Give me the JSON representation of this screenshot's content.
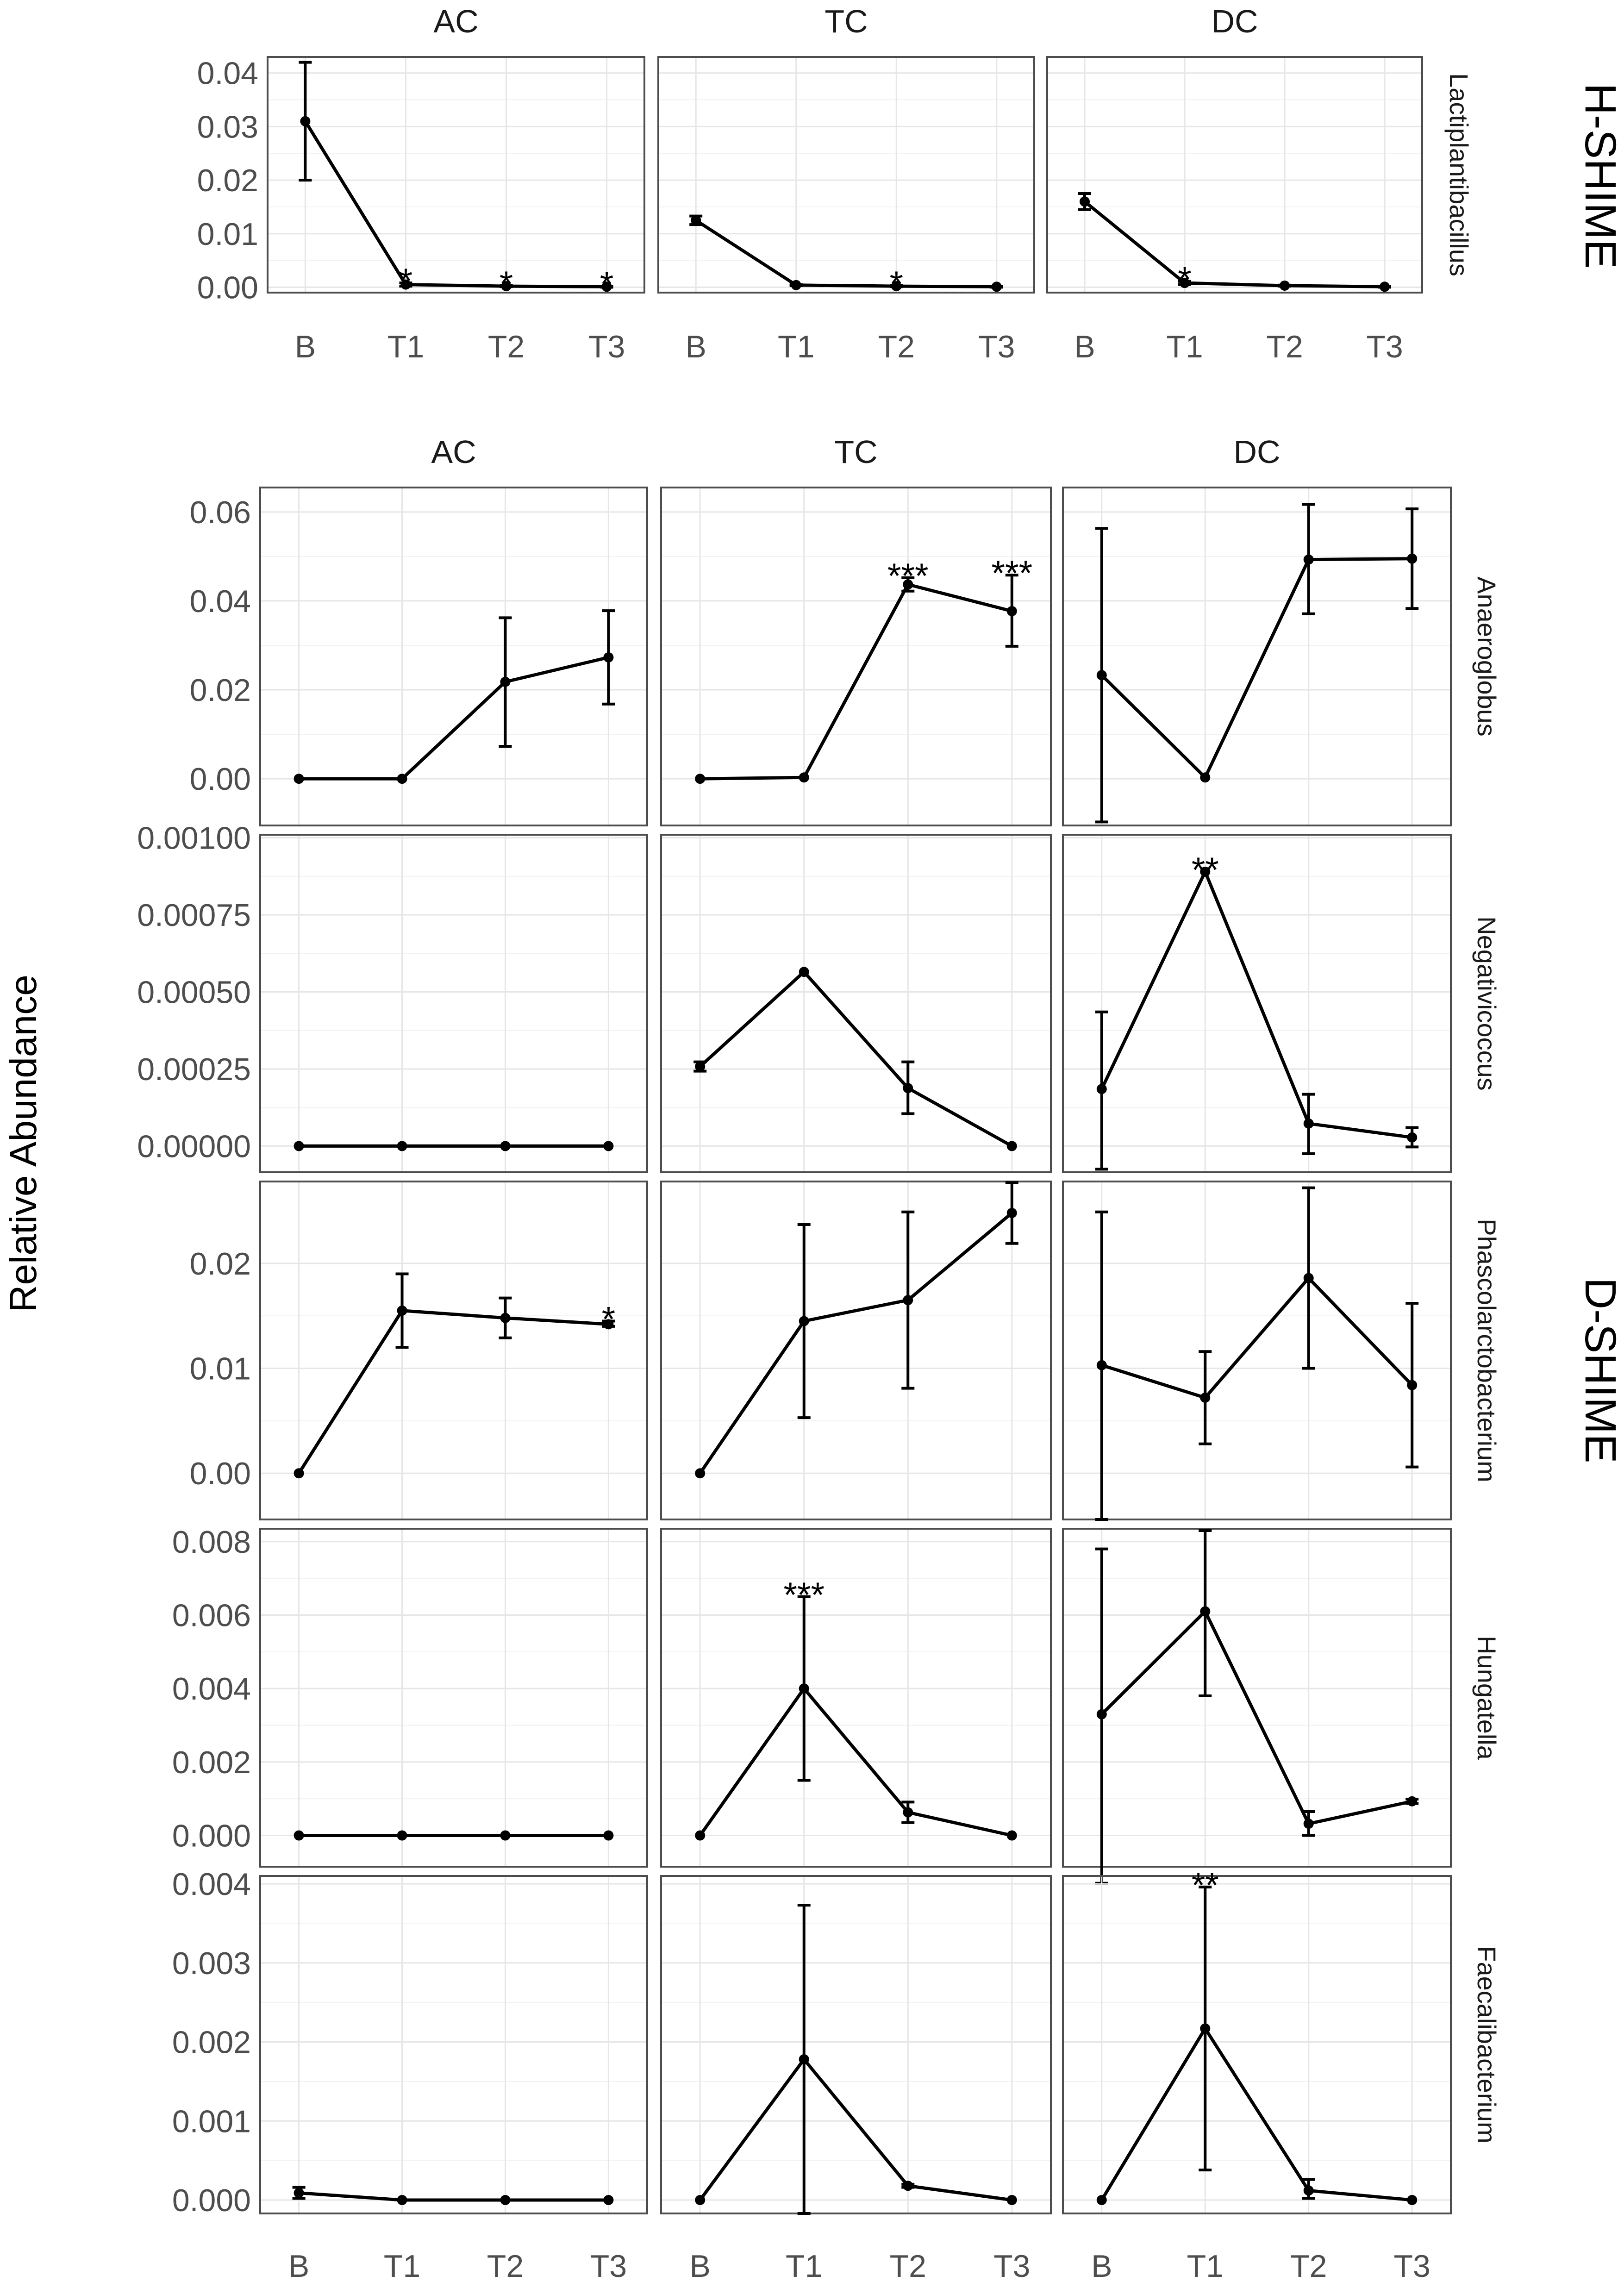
{
  "axis_title": "Relative Abundance",
  "chart_data": {
    "type": "line",
    "x_categories": [
      "B",
      "T1",
      "T2",
      "T3"
    ],
    "ylabel": "Relative Abundance",
    "groups": [
      {
        "name": "H-SHIME",
        "columns": [
          "AC",
          "TC",
          "DC"
        ],
        "rows": [
          {
            "genus": "Lactiplantibacillus",
            "ylim": [
              -0.001,
              0.043
            ],
            "yticks": [
              0,
              0.01,
              0.02,
              0.03,
              0.04
            ],
            "ytick_labels": [
              "0.00",
              "0.01",
              "0.02",
              "0.03",
              "0.04"
            ],
            "panels": [
              {
                "column": "AC",
                "values": [
                  0.031,
                  0.0005,
                  0.0002,
                  0.0001
                ],
                "err_low": [
                  0.02,
                  0.0002,
                  0.0001,
                  0.0
                ],
                "err_high": [
                  0.042,
                  0.0008,
                  0.0003,
                  0.0002
                ],
                "sig": [
                  "",
                  "*",
                  "*",
                  "*"
                ]
              },
              {
                "column": "TC",
                "values": [
                  0.0125,
                  0.0004,
                  0.0002,
                  0.0001
                ],
                "err_low": [
                  0.0117,
                  0.0003,
                  0.0001,
                  0.0
                ],
                "err_high": [
                  0.0133,
                  0.0005,
                  0.0003,
                  0.0002
                ],
                "sig": [
                  "",
                  "",
                  "*",
                  ""
                ]
              },
              {
                "column": "DC",
                "values": [
                  0.016,
                  0.0008,
                  0.0003,
                  0.0001
                ],
                "err_low": [
                  0.0145,
                  0.0005,
                  0.0002,
                  0.0
                ],
                "err_high": [
                  0.0175,
                  0.0011,
                  0.0004,
                  0.0002
                ],
                "sig": [
                  "",
                  "*",
                  "",
                  ""
                ]
              }
            ]
          }
        ]
      },
      {
        "name": "D-SHIME",
        "columns": [
          "AC",
          "TC",
          "DC"
        ],
        "rows": [
          {
            "genus": "Anaeroglobus",
            "ylim": [
              -0.0105,
              0.0655
            ],
            "yticks": [
              0,
              0.02,
              0.04,
              0.06
            ],
            "ytick_labels": [
              "0.00",
              "0.02",
              "0.04",
              "0.06"
            ],
            "panels": [
              {
                "column": "AC",
                "values": [
                  0.0,
                  0.0,
                  0.0218,
                  0.0273
                ],
                "err_low": [
                  0.0,
                  0.0,
                  0.0073,
                  0.0168
                ],
                "err_high": [
                  0.0,
                  0.0,
                  0.0362,
                  0.0378
                ],
                "sig": [
                  "",
                  "",
                  "",
                  ""
                ]
              },
              {
                "column": "TC",
                "values": [
                  0.0,
                  0.0003,
                  0.0437,
                  0.0377
                ],
                "err_low": [
                  0.0,
                  0.0003,
                  0.0422,
                  0.0298
                ],
                "err_high": [
                  0.0,
                  0.0003,
                  0.0452,
                  0.0458
                ],
                "sig": [
                  "",
                  "",
                  "***",
                  "***"
                ]
              },
              {
                "column": "DC",
                "values": [
                  0.0233,
                  0.0003,
                  0.0493,
                  0.0495
                ],
                "err_low": [
                  -0.0097,
                  0.0003,
                  0.0371,
                  0.0383
                ],
                "err_high": [
                  0.0563,
                  0.0003,
                  0.0617,
                  0.0607
                ],
                "sig": [
                  "",
                  "",
                  "",
                  ""
                ]
              }
            ]
          },
          {
            "genus": "Negativicoccus",
            "ylim": [
              -8.5e-05,
              0.00101
            ],
            "yticks": [
              0,
              0.00025,
              0.0005,
              0.00075,
              0.001
            ],
            "ytick_labels": [
              "0.00000",
              "0.00025",
              "0.00050",
              "0.00075",
              "0.00100"
            ],
            "panels": [
              {
                "column": "AC",
                "values": [
                  0.0,
                  0.0,
                  0.0,
                  0.0
                ],
                "err_low": [
                  0.0,
                  0.0,
                  0.0,
                  0.0
                ],
                "err_high": [
                  0.0,
                  0.0,
                  0.0,
                  0.0
                ],
                "sig": [
                  "",
                  "",
                  "",
                  ""
                ]
              },
              {
                "column": "TC",
                "values": [
                  0.000258,
                  0.000565,
                  0.000188,
                  0.0
                ],
                "err_low": [
                  0.000243,
                  0.000565,
                  0.000105,
                  0.0
                ],
                "err_high": [
                  0.000273,
                  0.000565,
                  0.000273,
                  0.0
                ],
                "sig": [
                  "",
                  "",
                  "",
                  ""
                ]
              },
              {
                "column": "DC",
                "values": [
                  0.000185,
                  0.00089,
                  7.3e-05,
                  2.8e-05
                ],
                "err_low": [
                  -7.5e-05,
                  0.00089,
                  -2.5e-05,
                  -3e-06
                ],
                "err_high": [
                  0.000435,
                  0.00089,
                  0.000168,
                  6e-05
                ],
                "sig": [
                  "",
                  "**",
                  "",
                  ""
                ]
              }
            ]
          },
          {
            "genus": "Phascolarctobacterium",
            "ylim": [
              -0.0044,
              0.0278
            ],
            "yticks": [
              0,
              0.01,
              0.02
            ],
            "ytick_labels": [
              "0.00",
              "0.01",
              "0.02"
            ],
            "panels": [
              {
                "column": "AC",
                "values": [
                  0.0,
                  0.0155,
                  0.0148,
                  0.0142
                ],
                "err_low": [
                  0.0,
                  0.012,
                  0.0129,
                  0.014
                ],
                "err_high": [
                  0.0,
                  0.019,
                  0.0167,
                  0.0145
                ],
                "sig": [
                  "",
                  "",
                  "",
                  "*"
                ]
              },
              {
                "column": "TC",
                "values": [
                  0.0,
                  0.0145,
                  0.0165,
                  0.0248
                ],
                "err_low": [
                  0.0,
                  0.0053,
                  0.0081,
                  0.0219
                ],
                "err_high": [
                  0.0,
                  0.0237,
                  0.0249,
                  0.0277
                ],
                "sig": [
                  "",
                  "",
                  "",
                  ""
                ]
              },
              {
                "column": "DC",
                "values": [
                  0.0103,
                  0.0072,
                  0.0186,
                  0.0084
                ],
                "err_low": [
                  -0.0044,
                  0.0028,
                  0.01,
                  0.0006
                ],
                "err_high": [
                  0.0249,
                  0.0116,
                  0.0272,
                  0.0162
                ],
                "sig": [
                  "",
                  "",
                  "",
                  ""
                ]
              }
            ]
          },
          {
            "genus": "Hungatella",
            "ylim": [
              -0.00085,
              0.00835
            ],
            "yticks": [
              0,
              0.002,
              0.004,
              0.006,
              0.008
            ],
            "ytick_labels": [
              "0.000",
              "0.002",
              "0.004",
              "0.006",
              "0.008"
            ],
            "panels": [
              {
                "column": "AC",
                "values": [
                  0.0,
                  0.0,
                  0.0,
                  0.0
                ],
                "err_low": [
                  0.0,
                  0.0,
                  0.0,
                  0.0
                ],
                "err_high": [
                  0.0,
                  0.0,
                  0.0,
                  0.0
                ],
                "sig": [
                  "",
                  "",
                  "",
                  ""
                ]
              },
              {
                "column": "TC",
                "values": [
                  0.0,
                  0.004,
                  0.00063,
                  0.0
                ],
                "err_low": [
                  0.0,
                  0.0015,
                  0.00035,
                  0.0
                ],
                "err_high": [
                  0.0,
                  0.0065,
                  0.00091,
                  0.0
                ],
                "sig": [
                  "",
                  "***",
                  "",
                  ""
                ]
              },
              {
                "column": "DC",
                "values": [
                  0.0033,
                  0.0061,
                  0.00032,
                  0.00093
                ],
                "err_low": [
                  -0.0013,
                  0.0038,
                  0.0,
                  0.00087
                ],
                "err_high": [
                  0.0078,
                  0.0083,
                  0.00065,
                  0.00099
                ],
                "sig": [
                  "",
                  "",
                  "",
                  ""
                ]
              }
            ]
          },
          {
            "genus": "Faecalibacterium",
            "ylim": [
              -0.00017,
              0.0041
            ],
            "yticks": [
              0,
              0.001,
              0.002,
              0.003,
              0.004
            ],
            "ytick_labels": [
              "0.000",
              "0.001",
              "0.002",
              "0.003",
              "0.004"
            ],
            "panels": [
              {
                "column": "AC",
                "values": [
                  9e-05,
                  0.0,
                  0.0,
                  0.0
                ],
                "err_low": [
                  2e-05,
                  0.0,
                  0.0,
                  0.0
                ],
                "err_high": [
                  0.00016,
                  0.0,
                  0.0,
                  0.0
                ],
                "sig": [
                  "",
                  "",
                  "",
                  ""
                ]
              },
              {
                "column": "TC",
                "values": [
                  0.0,
                  0.00178,
                  0.00018,
                  0.0
                ],
                "err_low": [
                  0.0,
                  -0.00017,
                  0.00016,
                  0.0
                ],
                "err_high": [
                  0.0,
                  0.00373,
                  0.0002,
                  0.0
                ],
                "sig": [
                  "",
                  "",
                  "",
                  ""
                ]
              },
              {
                "column": "DC",
                "values": [
                  0.0,
                  0.00217,
                  0.00012,
                  0.0
                ],
                "err_low": [
                  0.0,
                  0.00038,
                  2e-05,
                  0.0
                ],
                "err_high": [
                  0.0,
                  0.00396,
                  0.00026,
                  0.0
                ],
                "sig": [
                  "",
                  "**",
                  "",
                  ""
                ]
              }
            ]
          }
        ]
      }
    ]
  }
}
